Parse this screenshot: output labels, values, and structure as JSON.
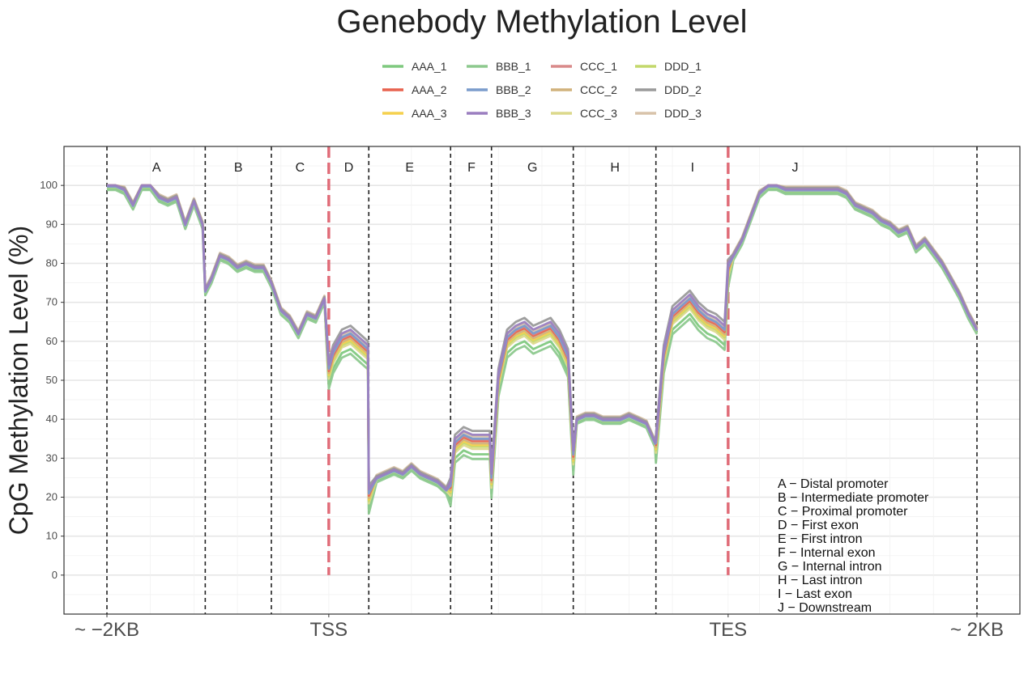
{
  "chart_data": {
    "type": "line",
    "title": "Genebody Methylation Level",
    "ylabel": "CpG Methylation Level (%)",
    "xlabel": "",
    "ylim": [
      -10,
      110
    ],
    "xlim": [
      0,
      100
    ],
    "grid": true,
    "yticks": [
      0,
      10,
      20,
      30,
      40,
      50,
      60,
      70,
      80,
      90,
      100
    ],
    "xticks": [
      {
        "x": 0,
        "label": "~ −2KB"
      },
      {
        "x": 25.5,
        "label": "TSS"
      },
      {
        "x": 71.4,
        "label": "TES"
      },
      {
        "x": 100,
        "label": "~ 2KB"
      }
    ],
    "dividers": [
      0,
      11.3,
      18.9,
      30.1,
      39.5,
      44.2,
      53.6,
      63.1,
      100
    ],
    "highlight_dividers": [
      25.5,
      71.4
    ],
    "regions": [
      {
        "label": "A",
        "x": 5.7
      },
      {
        "label": "B",
        "x": 15.1
      },
      {
        "label": "C",
        "x": 22.2
      },
      {
        "label": "D",
        "x": 27.8
      },
      {
        "label": "E",
        "x": 34.8
      },
      {
        "label": "F",
        "x": 41.9
      },
      {
        "label": "G",
        "x": 48.9
      },
      {
        "label": "H",
        "x": 58.4
      },
      {
        "label": "I",
        "x": 67.3
      },
      {
        "label": "J",
        "x": 79.1
      }
    ],
    "legend_position": "top",
    "region_notes": [
      "A − Distal promoter",
      "B − Intermediate promoter",
      "C − Proximal promoter",
      "D − First exon",
      "E − First intron",
      "F − Internal exon",
      "G − Internal intron",
      "H − Last intron",
      "I − Last exon",
      "J − Downstream"
    ],
    "base_profile": {
      "x": [
        0,
        1,
        2,
        3,
        4,
        5,
        6,
        7,
        8,
        9,
        10,
        11,
        11.3,
        12,
        13,
        14,
        15,
        16,
        17,
        18,
        18.9,
        20,
        21,
        22,
        23,
        24,
        25,
        25.5,
        26,
        27,
        28,
        29,
        30,
        30.1,
        31,
        32,
        33,
        34,
        35,
        36,
        37,
        38,
        39,
        39.5,
        40,
        41,
        42,
        43,
        44,
        44.2,
        45,
        46,
        47,
        48,
        49,
        50,
        51,
        52,
        53,
        53.6,
        54,
        55,
        56,
        57,
        58,
        59,
        60,
        61,
        62,
        63,
        63.1,
        64,
        65,
        66,
        67,
        68,
        69,
        70,
        71,
        71.4,
        72,
        73,
        74,
        75,
        76,
        77,
        78,
        79,
        80,
        81,
        82,
        83,
        84,
        85,
        86,
        87,
        88,
        89,
        90,
        91,
        92,
        93,
        94,
        95,
        96,
        97,
        98,
        99,
        100
      ],
      "y": [
        100,
        100,
        99,
        95,
        100,
        100,
        97,
        96,
        97,
        90,
        96,
        90,
        73,
        76,
        82,
        81,
        79,
        80,
        79,
        79,
        75,
        68,
        66,
        62,
        67,
        66,
        71,
        52,
        56,
        60,
        61,
        59,
        57,
        20,
        25,
        26,
        27,
        26,
        28,
        26,
        25,
        24,
        22,
        22,
        33,
        35,
        34,
        34,
        34,
        24,
        50,
        60,
        62,
        63,
        61,
        62,
        63,
        60,
        55,
        30,
        40,
        41,
        41,
        40,
        40,
        40,
        41,
        40,
        39,
        34,
        33,
        56,
        66,
        68,
        70,
        67,
        65,
        64,
        62,
        78,
        82,
        86,
        92,
        98,
        100,
        100,
        99,
        99,
        99,
        99,
        99,
        99,
        99,
        98,
        95,
        94,
        93,
        91,
        90,
        88,
        89,
        84,
        86,
        83,
        80,
        76,
        72,
        67,
        63
      ]
    },
    "series": [
      {
        "name": "AAA_1",
        "color": "#7fc97f",
        "offset_exon": -3.0,
        "offset_other": -0.8
      },
      {
        "name": "AAA_2",
        "color": "#e8624f",
        "offset_exon": 0.4,
        "offset_other": 0.2
      },
      {
        "name": "AAA_3",
        "color": "#f5d14e",
        "offset_exon": -0.6,
        "offset_other": 0.5
      },
      {
        "name": "BBB_1",
        "color": "#8dc98e",
        "offset_exon": -4.2,
        "offset_other": -1.2
      },
      {
        "name": "BBB_2",
        "color": "#7b9ccc",
        "offset_exon": 1.0,
        "offset_other": -0.3
      },
      {
        "name": "BBB_3",
        "color": "#9b7fc0",
        "offset_exon": 2.0,
        "offset_other": 0.0
      },
      {
        "name": "CCC_1",
        "color": "#d98a8a",
        "offset_exon": 0.8,
        "offset_other": 0.3
      },
      {
        "name": "CCC_2",
        "color": "#d1b27c",
        "offset_exon": -0.2,
        "offset_other": 0.6
      },
      {
        "name": "CCC_3",
        "color": "#dcd98c",
        "offset_exon": -1.6,
        "offset_other": -0.4
      },
      {
        "name": "DDD_1",
        "color": "#c3d86b",
        "offset_exon": -1.0,
        "offset_other": 0.1
      },
      {
        "name": "DDD_2",
        "color": "#9a9a9a",
        "offset_exon": 3.0,
        "offset_other": 0.4
      },
      {
        "name": "DDD_3",
        "color": "#d8c3aa",
        "offset_exon": 1.6,
        "offset_other": 0.7
      }
    ]
  }
}
